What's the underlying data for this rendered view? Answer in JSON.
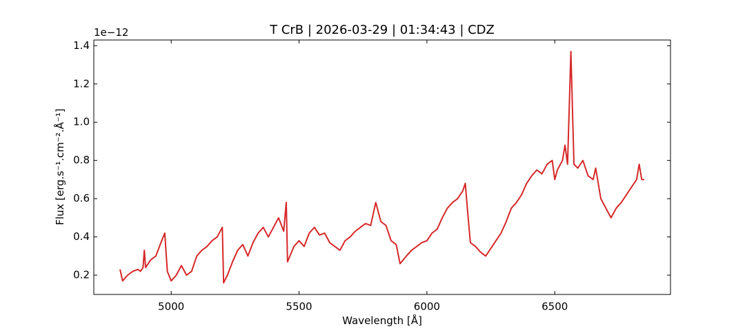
{
  "chart_data": {
    "type": "line",
    "title": "T CrB | 2026-03-29 | 01:34:43 | CDZ",
    "x_label": "Wavelength [Å]",
    "y_label": "Flux [erg.s⁻¹.cm⁻².Å⁻¹]",
    "y_offset_label": "1e−12",
    "x": [
      4800,
      4810,
      4830,
      4850,
      4870,
      4880,
      4890,
      4895,
      4900,
      4920,
      4940,
      4960,
      4975,
      4985,
      5000,
      5020,
      5040,
      5060,
      5080,
      5100,
      5120,
      5140,
      5160,
      5180,
      5200,
      5205,
      5220,
      5240,
      5260,
      5280,
      5300,
      5320,
      5340,
      5360,
      5380,
      5400,
      5420,
      5440,
      5450,
      5455,
      5480,
      5500,
      5520,
      5540,
      5560,
      5580,
      5600,
      5620,
      5640,
      5660,
      5680,
      5700,
      5720,
      5740,
      5760,
      5780,
      5800,
      5820,
      5840,
      5860,
      5880,
      5895,
      5920,
      5940,
      5960,
      5980,
      6000,
      6020,
      6040,
      6060,
      6080,
      6100,
      6120,
      6140,
      6150,
      6160,
      6170,
      6190,
      6210,
      6230,
      6250,
      6270,
      6290,
      6310,
      6330,
      6350,
      6370,
      6390,
      6410,
      6430,
      6450,
      6470,
      6490,
      6500,
      6510,
      6530,
      6540,
      6550,
      6563,
      6575,
      6590,
      6610,
      6630,
      6650,
      6660,
      6680,
      6700,
      6720,
      6740,
      6760,
      6780,
      6800,
      6820,
      6830,
      6840,
      6850
    ],
    "series": [
      {
        "name": "T CrB",
        "color": "#d62728",
        "values": [
          0.23,
          0.17,
          0.2,
          0.22,
          0.23,
          0.22,
          0.24,
          0.33,
          0.24,
          0.28,
          0.3,
          0.37,
          0.42,
          0.22,
          0.17,
          0.2,
          0.25,
          0.2,
          0.22,
          0.3,
          0.33,
          0.35,
          0.38,
          0.4,
          0.45,
          0.16,
          0.2,
          0.27,
          0.33,
          0.36,
          0.3,
          0.37,
          0.42,
          0.45,
          0.4,
          0.45,
          0.5,
          0.43,
          0.58,
          0.27,
          0.35,
          0.38,
          0.35,
          0.42,
          0.45,
          0.41,
          0.42,
          0.37,
          0.35,
          0.33,
          0.38,
          0.4,
          0.43,
          0.45,
          0.47,
          0.46,
          0.58,
          0.48,
          0.46,
          0.38,
          0.36,
          0.26,
          0.3,
          0.33,
          0.35,
          0.37,
          0.38,
          0.42,
          0.44,
          0.5,
          0.55,
          0.58,
          0.6,
          0.64,
          0.68,
          0.52,
          0.37,
          0.35,
          0.32,
          0.3,
          0.34,
          0.38,
          0.42,
          0.48,
          0.55,
          0.58,
          0.62,
          0.68,
          0.72,
          0.75,
          0.73,
          0.78,
          0.8,
          0.7,
          0.75,
          0.8,
          0.88,
          0.78,
          1.37,
          0.78,
          0.76,
          0.8,
          0.72,
          0.7,
          0.76,
          0.6,
          0.55,
          0.5,
          0.55,
          0.58,
          0.62,
          0.66,
          0.7,
          0.78,
          0.7,
          0.7
        ]
      }
    ],
    "xlim": [
      4697.5,
      6952.5
    ],
    "ylim": [
      0.099,
      1.43
    ],
    "xticks": [
      5000,
      5500,
      6000,
      6500
    ],
    "yticks": [
      0.2,
      0.4,
      0.6,
      0.8,
      {
        "value": 1,
        "label": "1.0"
      },
      1.2,
      1.4
    ]
  }
}
